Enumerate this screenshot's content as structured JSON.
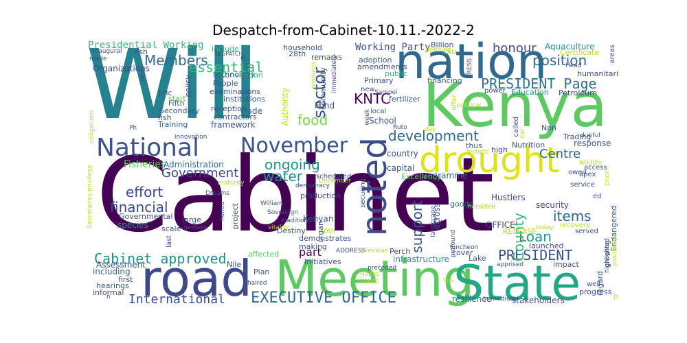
{
  "title": "Despatch-from-Cabinet-10.11.-2022-2",
  "words": [
    {
      "text": "Cabinet",
      "color": "#440154"
    },
    {
      "text": "Will",
      "color": "#26828e"
    },
    {
      "text": "Kenya",
      "color": "#5ec962"
    },
    {
      "text": "nation",
      "color": "#31688e"
    },
    {
      "text": "road",
      "color": "#3e4989"
    },
    {
      "text": "Meeting",
      "color": "#5ec962"
    },
    {
      "text": "State",
      "color": "#22a884"
    },
    {
      "text": "drought",
      "color": "#dde318"
    },
    {
      "text": "National",
      "color": "#3b528b"
    },
    {
      "text": "November",
      "color": "#3b528b"
    },
    {
      "text": "noted",
      "color": "#3e4989"
    },
    {
      "text": "development",
      "color": "#31688e"
    },
    {
      "text": "PRESIDENT Page",
      "color": "#2c728e"
    },
    {
      "text": "EXECUTIVE OFFICE",
      "color": "#31688e"
    },
    {
      "text": "International",
      "color": "#3e4989"
    },
    {
      "text": "Cabinet approved",
      "color": "#21918c"
    },
    {
      "text": "PRESIDENT",
      "color": "#3b528b"
    },
    {
      "text": "position",
      "color": "#31688e"
    },
    {
      "text": "essential",
      "color": "#35b779"
    },
    {
      "text": "Members",
      "color": "#31688e"
    },
    {
      "text": "financial",
      "color": "#3e4989"
    },
    {
      "text": "effort",
      "color": "#3e4989"
    },
    {
      "text": "Government",
      "color": "#3e4989"
    },
    {
      "text": "ongoing",
      "color": "#21918c"
    },
    {
      "text": "water",
      "color": "#21918c"
    },
    {
      "text": "food",
      "color": "#7ad151"
    },
    {
      "text": "KNTC",
      "color": "#440154"
    },
    {
      "text": "sector",
      "color": "#3b528b"
    },
    {
      "text": "support",
      "color": "#3b528b"
    },
    {
      "text": "Centre",
      "color": "#31688e"
    },
    {
      "text": "items",
      "color": "#31688e"
    },
    {
      "text": "Loan",
      "color": "#21918c"
    },
    {
      "text": "County",
      "color": "#35b779"
    },
    {
      "text": "honour",
      "color": "#3e4989"
    },
    {
      "text": "part",
      "color": "#440154"
    },
    {
      "text": "Presidential Working",
      "color": "#35b779"
    },
    {
      "text": "Working Party",
      "color": "#3b528b"
    },
    {
      "text": "Aquaculture",
      "color": "#21918c"
    },
    {
      "text": "Fisheries",
      "color": "#5ec962"
    },
    {
      "text": "species",
      "color": "#21918c"
    },
    {
      "text": "including",
      "color": "#31688e"
    },
    {
      "text": "Administration",
      "color": "#31688e"
    },
    {
      "text": "Assessment",
      "color": "#3b528b"
    },
    {
      "text": "Organizations",
      "color": "#3e4989"
    },
    {
      "text": "include",
      "color": "#35b779"
    },
    {
      "text": "People",
      "color": "#3b528b"
    },
    {
      "text": "examinations",
      "color": "#3e4989"
    },
    {
      "text": "Convention",
      "color": "#35b779"
    },
    {
      "text": "technology",
      "color": "#31688e"
    },
    {
      "text": "Training",
      "color": "#31688e"
    },
    {
      "text": "framework",
      "color": "#3b528b"
    },
    {
      "text": "trade",
      "color": "#31688e"
    },
    {
      "text": "School",
      "color": "#3b528b"
    },
    {
      "text": "Fund",
      "color": "#3b528b"
    },
    {
      "text": "Kenyan",
      "color": "#3b528b"
    },
    {
      "text": "infrastructure",
      "color": "#21918c"
    },
    {
      "text": "country",
      "color": "#3b528b"
    },
    {
      "text": "capital",
      "color": "#3b528b"
    },
    {
      "text": "programme",
      "color": "#31688e"
    },
    {
      "text": "security",
      "color": "#3e4989"
    },
    {
      "text": "stakeholders",
      "color": "#3e4989"
    },
    {
      "text": "resilience",
      "color": "#31688e"
    },
    {
      "text": "response",
      "color": "#3b528b"
    },
    {
      "text": "Trading",
      "color": "#3b528b"
    },
    {
      "text": "Nutrition",
      "color": "#3b528b"
    },
    {
      "text": "Petroleum",
      "color": "#3e4989"
    },
    {
      "text": "Education",
      "color": "#21918c"
    },
    {
      "text": "humanitarian",
      "color": "#3b528b"
    },
    {
      "text": "fertilizer",
      "color": "#3b528b"
    },
    {
      "text": "financing",
      "color": "#3b528b"
    },
    {
      "text": "Excellency",
      "color": "#5ec962"
    },
    {
      "text": "production",
      "color": "#3e4989"
    },
    {
      "text": "Hustlers",
      "color": "#3e4989"
    },
    {
      "text": "goods",
      "color": "#31688e"
    },
    {
      "text": "across",
      "color": "#3b528b"
    },
    {
      "text": "OFFICE",
      "color": "#3e4989"
    },
    {
      "text": "launched",
      "color": "#3e4989"
    },
    {
      "text": "impact",
      "color": "#3b528b"
    },
    {
      "text": "progress",
      "color": "#3b528b"
    },
    {
      "text": "hearings",
      "color": "#3b528b"
    },
    {
      "text": "informal",
      "color": "#3b528b"
    },
    {
      "text": "first",
      "color": "#3b528b"
    },
    {
      "text": "Plan",
      "color": "#3b528b"
    },
    {
      "text": "Nile",
      "color": "#3b528b"
    },
    {
      "text": "Lake",
      "color": "#3b528b"
    },
    {
      "text": "cover",
      "color": "#3b528b"
    },
    {
      "text": "high",
      "color": "#3b528b"
    },
    {
      "text": "thus",
      "color": "#3b528b"
    },
    {
      "text": "Non",
      "color": "#3b528b"
    },
    {
      "text": "Perch",
      "color": "#3b528b"
    },
    {
      "text": "Destiny",
      "color": "#3b528b"
    },
    {
      "text": "initiatives",
      "color": "#3b528b"
    },
    {
      "text": "demonstrates",
      "color": "#3b528b"
    },
    {
      "text": "making",
      "color": "#3b528b"
    },
    {
      "text": "affected",
      "color": "#5ec962"
    },
    {
      "text": "RELEASE",
      "color": "#b5de2b"
    },
    {
      "text": "Governmental",
      "color": "#3b528b"
    },
    {
      "text": "large",
      "color": "#3b528b"
    },
    {
      "text": "scale",
      "color": "#3b528b"
    },
    {
      "text": "Secondary",
      "color": "#3b528b"
    },
    {
      "text": "Fifth",
      "color": "#3b528b"
    },
    {
      "text": "pric",
      "color": "#3b528b"
    },
    {
      "text": "start",
      "color": "#5ec962"
    },
    {
      "text": "fish",
      "color": "#3b528b"
    },
    {
      "text": "reception",
      "color": "#3b528b"
    },
    {
      "text": "contractors",
      "color": "#3b528b"
    },
    {
      "text": "institutions",
      "color": "#3b528b"
    },
    {
      "text": "community",
      "color": "#3b528b"
    },
    {
      "text": "household",
      "color": "#3b528b"
    },
    {
      "text": "28th",
      "color": "#3b528b"
    },
    {
      "text": "Primary",
      "color": "#3b528b"
    },
    {
      "text": "adoption",
      "color": "#3b528b"
    },
    {
      "text": "amendments",
      "color": "#3b528b"
    },
    {
      "text": "public",
      "color": "#35b779"
    },
    {
      "text": "remarks",
      "color": "#3b528b"
    },
    {
      "text": "Billion",
      "color": "#3b528b"
    },
    {
      "text": "opening",
      "color": "#b5de2b"
    },
    {
      "text": "Ksh",
      "color": "#3b528b"
    },
    {
      "text": "inaugural",
      "color": "#3b528b"
    },
    {
      "text": "made",
      "color": "#3b528b"
    },
    {
      "text": "Certificate",
      "color": "#b5de2b"
    },
    {
      "text": "Head",
      "color": "#3b528b"
    },
    {
      "text": "power",
      "color": "#3b528b"
    },
    {
      "text": "political",
      "color": "#b5de2b"
    },
    {
      "text": "Samoei",
      "color": "#3b528b"
    },
    {
      "text": "local",
      "color": "#3b528b"
    },
    {
      "text": "Ruto",
      "color": "#3b528b"
    },
    {
      "text": "day",
      "color": "#b5de2b"
    },
    {
      "text": "historic",
      "color": "#b5de2b"
    },
    {
      "text": "new",
      "color": "#3b528b"
    },
    {
      "text": "scheduled",
      "color": "#3b528b"
    },
    {
      "text": "December",
      "color": "#b5de2b"
    },
    {
      "text": "democracy",
      "color": "#3b528b"
    },
    {
      "text": "preceded",
      "color": "#3b528b"
    },
    {
      "text": "Hopes",
      "color": "#b5de2b"
    },
    {
      "text": "hands",
      "color": "#b5de2b"
    },
    {
      "text": "chaired",
      "color": "#3b528b"
    },
    {
      "text": "ADDRESS",
      "color": "#3b528b"
    },
    {
      "text": "previous",
      "color": "#b5de2b"
    },
    {
      "text": "luncheon",
      "color": "#3b528b"
    },
    {
      "text": "apprised",
      "color": "#3b528b"
    },
    {
      "text": "served",
      "color": "#3b528b"
    },
    {
      "text": "today",
      "color": "#b5de2b"
    },
    {
      "text": "recovery",
      "color": "#b5de2b"
    },
    {
      "text": "well",
      "color": "#3b528b"
    },
    {
      "text": "Immediate",
      "color": "#3b528b"
    },
    {
      "text": "lies",
      "color": "#b5de2b"
    },
    {
      "text": "apex",
      "color": "#3b528b"
    },
    {
      "text": "service",
      "color": "#3b528b"
    },
    {
      "text": "access",
      "color": "#3b528b"
    },
    {
      "text": "Wildlife",
      "color": "#b5de2b"
    },
    {
      "text": "price",
      "color": "#b5de2b"
    },
    {
      "text": "dutiful",
      "color": "#3b528b"
    },
    {
      "text": "gesture",
      "color": "#3b528b"
    },
    {
      "text": "tradition",
      "color": "#3b528b"
    },
    {
      "text": "vitality",
      "color": "#b5de2b"
    },
    {
      "text": "William",
      "color": "#3b528b"
    },
    {
      "text": "Dreams",
      "color": "#3b528b"
    },
    {
      "text": "honou",
      "color": "#3b528b"
    },
    {
      "text": "Sovereign",
      "color": "#3b528b"
    },
    {
      "text": "maturity",
      "color": "#b5de2b"
    },
    {
      "text": "Ph",
      "color": "#3b528b"
    },
    {
      "text": "innovation",
      "color": "#3b528b"
    },
    {
      "text": "n",
      "color": "#3b528b"
    },
    {
      "text": "Secretaries privilege",
      "color": "#b5de2b"
    },
    {
      "text": "obligations",
      "color": "#b5de2b"
    },
    {
      "text": "Authority",
      "color": "#b5de2b"
    },
    {
      "text": "policy",
      "color": "#3b528b"
    },
    {
      "text": "products",
      "color": "#b5de2b"
    },
    {
      "text": "immediately",
      "color": "#3b528b"
    },
    {
      "text": "project",
      "color": "#3b528b"
    },
    {
      "text": "organ",
      "color": "#3b528b"
    },
    {
      "text": "30th",
      "color": "#b5de2b"
    },
    {
      "text": "FY",
      "color": "#3b528b"
    },
    {
      "text": "landscape",
      "color": "#3b528b"
    },
    {
      "text": "profound",
      "color": "#3b528b"
    },
    {
      "text": "heralded",
      "color": "#b5de2b"
    },
    {
      "text": "Endangered",
      "color": "#3b528b"
    },
    {
      "text": "regard",
      "color": "#3b528b"
    },
    {
      "text": "growing",
      "color": "#3b528b"
    },
    {
      "text": "highlighted",
      "color": "#3b528b"
    },
    {
      "text": "positively",
      "color": "#b5de2b"
    },
    {
      "text": "called",
      "color": "#3b528b"
    },
    {
      "text": "areas",
      "color": "#3b528b"
    },
    {
      "text": "owed",
      "color": "#3b528b"
    },
    {
      "text": "one",
      "color": "#3b528b"
    },
    {
      "text": "e",
      "color": "#3b528b"
    },
    {
      "text": "DESPATCH",
      "color": "#3b528b"
    },
    {
      "text": "CSN",
      "color": "#b5de2b"
    },
    {
      "text": "PRESS",
      "color": "#3b528b"
    },
    {
      "text": "offer",
      "color": "#b5de2b"
    },
    {
      "text": "week",
      "color": "#3b528b"
    },
    {
      "text": "Itel",
      "color": "#b5de2b"
    },
    {
      "text": "last",
      "color": "#3b528b"
    },
    {
      "text": "securing",
      "color": "#3b528b"
    },
    {
      "text": "ed",
      "color": "#3b528b"
    },
    {
      "text": "D",
      "color": "#b5de2b"
    }
  ]
}
